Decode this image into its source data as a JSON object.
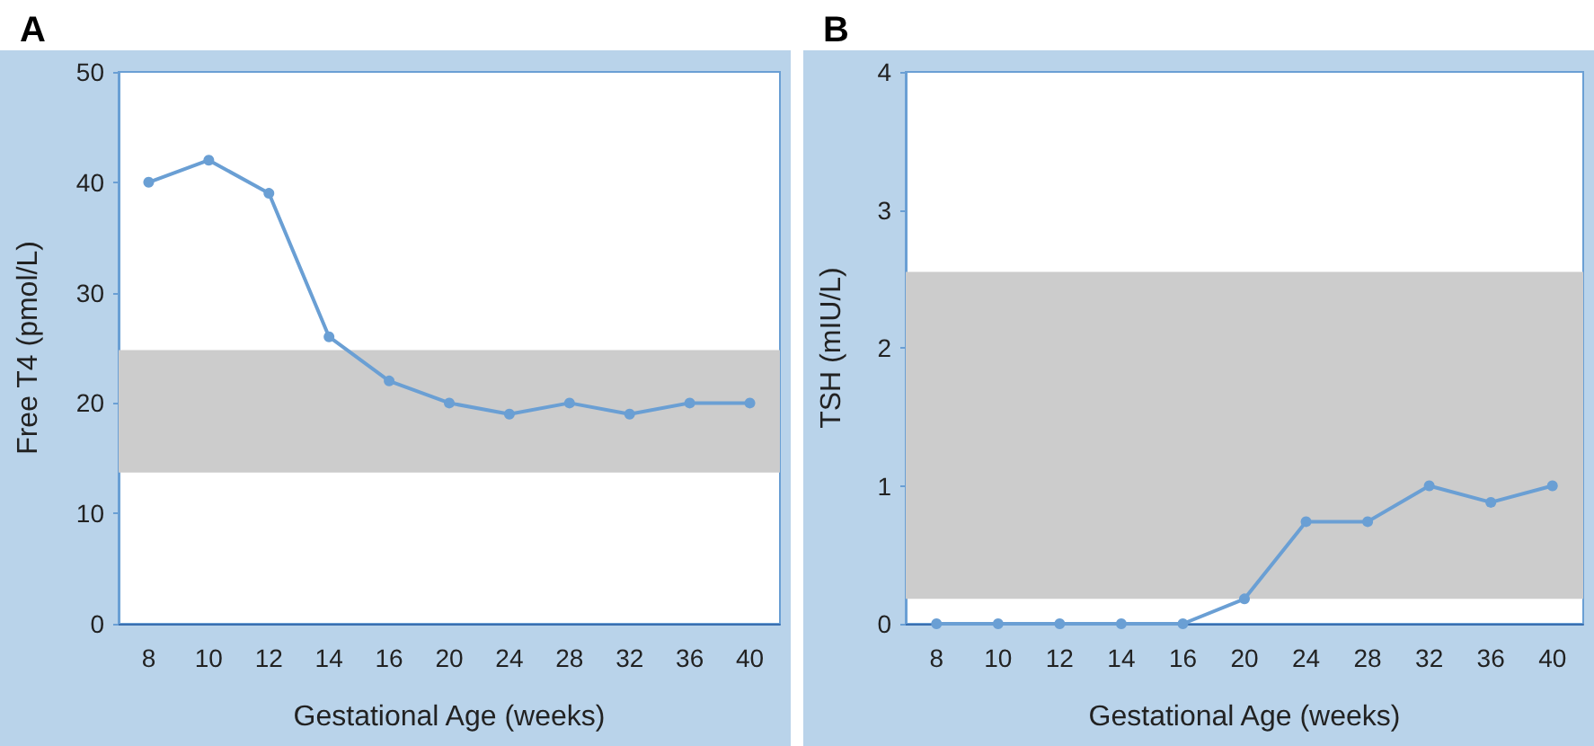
{
  "chart_data": [
    {
      "type": "line",
      "title": "A",
      "xlabel": "Gestational Age (weeks)",
      "ylabel": "Free T4 (pmol/L)",
      "categories": [
        "8",
        "10",
        "12",
        "14",
        "16",
        "20",
        "24",
        "28",
        "32",
        "36",
        "40"
      ],
      "series": [
        {
          "color": "#6a9fd4",
          "values": [
            40,
            42,
            39,
            26,
            22,
            20,
            19,
            20,
            19,
            20,
            20
          ]
        }
      ],
      "ylim": [
        0,
        50
      ],
      "yticks": [
        0,
        10,
        20,
        30,
        40,
        50
      ],
      "bands": [
        {
          "axis": "y",
          "from": 13.7,
          "to": 24.8,
          "color": "#cccccc"
        }
      ],
      "marker": "circle",
      "line_style": "solid",
      "grid": false
    },
    {
      "type": "line",
      "title": "B",
      "xlabel": "Gestational Age (weeks)",
      "ylabel": "TSH (mIU/L)",
      "categories": [
        "8",
        "10",
        "12",
        "14",
        "16",
        "20",
        "24",
        "28",
        "32",
        "36",
        "40"
      ],
      "series": [
        {
          "color": "#6a9fd4",
          "values": [
            0,
            0,
            0,
            0,
            0,
            0.18,
            0.74,
            0.74,
            1.0,
            0.88,
            1.0
          ]
        }
      ],
      "ylim": [
        0,
        4
      ],
      "yticks": [
        0,
        1,
        2,
        3,
        4
      ],
      "bands": [
        {
          "axis": "y",
          "from": 0.18,
          "to": 2.55,
          "color": "#cccccc"
        }
      ],
      "marker": "circle",
      "line_style": "solid",
      "grid": false
    }
  ]
}
